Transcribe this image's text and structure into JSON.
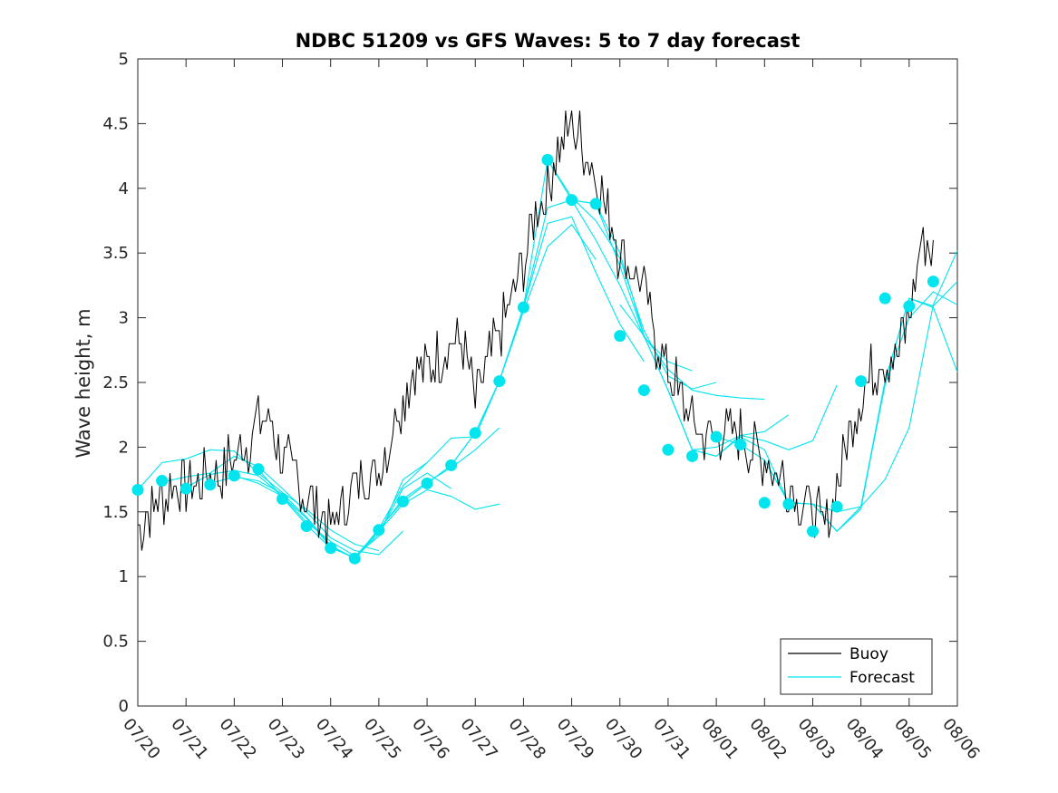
{
  "chart_data": {
    "type": "line",
    "title": "NDBC 51209 vs GFS Waves: 5 to 7 day forecast",
    "xlabel": "",
    "ylabel": "Wave height, m",
    "ylim": [
      0,
      5
    ],
    "xlim": [
      0,
      17
    ],
    "yticks": [
      "0",
      "0.5",
      "1",
      "1.5",
      "2",
      "2.5",
      "3",
      "3.5",
      "4",
      "4.5",
      "5"
    ],
    "xticks": [
      "07/20",
      "07/21",
      "07/22",
      "07/23",
      "07/24",
      "07/25",
      "07/26",
      "07/27",
      "07/28",
      "07/29",
      "07/30",
      "07/31",
      "08/01",
      "08/02",
      "08/03",
      "08/04",
      "08/05",
      "08/06"
    ],
    "grid": false,
    "legend_position": "bottom-right",
    "legend": [
      "Buoy",
      "Forecast"
    ],
    "colors": {
      "buoy": "#000000",
      "forecast": "#00e5ee"
    },
    "buoy": {
      "name": "Buoy",
      "x": [
        0.0,
        0.25,
        0.5,
        0.75,
        1.0,
        1.25,
        1.5,
        1.75,
        2.0,
        2.25,
        2.5,
        2.75,
        3.0,
        3.25,
        3.5,
        3.75,
        4.0,
        4.25,
        4.5,
        4.75,
        5.0,
        5.25,
        5.5,
        5.75,
        6.0,
        6.25,
        6.5,
        6.75,
        7.0,
        7.25,
        7.5,
        7.75,
        8.0,
        8.25,
        8.5,
        8.75,
        9.0,
        9.25,
        9.5,
        9.75,
        10.0,
        10.25,
        10.5,
        10.75,
        11.0,
        11.25,
        11.5,
        11.75,
        12.0,
        12.25,
        12.5,
        12.75,
        13.0,
        13.25,
        13.5,
        13.75,
        14.0,
        14.25,
        14.5,
        14.75,
        15.0,
        15.25,
        15.5,
        15.75,
        16.0,
        16.25,
        16.5
      ],
      "values": [
        1.4,
        1.5,
        1.6,
        1.7,
        1.7,
        1.7,
        1.8,
        1.8,
        1.9,
        2.0,
        2.2,
        2.2,
        1.9,
        1.8,
        1.6,
        1.5,
        1.4,
        1.5,
        1.7,
        1.8,
        1.8,
        2.1,
        2.4,
        2.6,
        2.6,
        2.7,
        2.8,
        2.8,
        2.3,
        2.6,
        2.9,
        3.1,
        3.4,
        3.8,
        4.0,
        4.3,
        4.5,
        4.3,
        4.1,
        3.8,
        3.5,
        3.4,
        3.2,
        2.8,
        2.6,
        2.4,
        2.2,
        2.1,
        2.1,
        2.1,
        2.1,
        2.0,
        1.9,
        1.8,
        1.7,
        1.6,
        1.5,
        1.4,
        1.7,
        2.1,
        2.4,
        2.6,
        2.7,
        2.7,
        3.0,
        3.6,
        3.5
      ]
    },
    "forecast_series": [
      {
        "name": "Forecast",
        "x": [
          0.0,
          0.5,
          1.0,
          1.5,
          2.0,
          2.5,
          3.0,
          3.5,
          4.0,
          4.5,
          5.0
        ],
        "values": [
          1.67,
          1.88,
          1.91,
          1.98,
          1.97,
          1.8,
          1.65,
          1.52,
          1.36,
          1.25,
          1.2
        ]
      },
      {
        "name": "Forecast",
        "x": [
          0.5,
          1.0,
          1.5,
          2.0,
          2.5,
          3.0,
          3.5,
          4.0,
          4.5,
          5.0,
          5.5
        ],
        "values": [
          1.73,
          1.77,
          1.8,
          1.93,
          1.85,
          1.68,
          1.5,
          1.3,
          1.2,
          1.17,
          1.35
        ]
      },
      {
        "name": "Forecast",
        "x": [
          1.0,
          1.5,
          2.0,
          2.5,
          3.0,
          3.5,
          4.0,
          4.5,
          5.0,
          5.5,
          6.0
        ],
        "values": [
          1.69,
          1.79,
          1.82,
          1.78,
          1.62,
          1.42,
          1.27,
          1.16,
          1.31,
          1.75,
          1.88
        ]
      },
      {
        "name": "Forecast",
        "x": [
          1.5,
          2.0,
          2.5,
          3.0,
          3.5,
          4.0,
          4.5,
          5.0,
          5.5,
          6.0,
          6.5
        ],
        "values": [
          1.72,
          1.77,
          1.74,
          1.64,
          1.46,
          1.24,
          1.14,
          1.33,
          1.68,
          1.8,
          1.68
        ]
      },
      {
        "name": "Forecast",
        "x": [
          2.0,
          2.5,
          3.0,
          3.5,
          4.0,
          4.5,
          5.0,
          5.5,
          6.0,
          6.5,
          7.0,
          7.5
        ],
        "values": [
          1.78,
          1.72,
          1.62,
          1.45,
          1.23,
          1.14,
          1.35,
          1.56,
          1.67,
          1.62,
          1.52,
          1.56
        ]
      },
      {
        "name": "Forecast",
        "x": [
          2.5,
          3.0,
          3.5,
          4.0,
          4.5,
          5.0,
          5.5,
          6.0,
          6.5,
          7.0,
          7.5
        ],
        "values": [
          1.83,
          1.61,
          1.4,
          1.22,
          1.15,
          1.36,
          1.6,
          1.73,
          1.84,
          1.98,
          2.15
        ]
      },
      {
        "name": "Forecast",
        "x": [
          4.5,
          5.0,
          5.5,
          6.0,
          6.5,
          7.0,
          7.5,
          8.0,
          8.5,
          9.0,
          9.5
        ],
        "values": [
          1.14,
          1.37,
          1.58,
          1.72,
          1.86,
          2.11,
          2.51,
          3.05,
          3.55,
          3.72,
          3.45
        ]
      },
      {
        "name": "Forecast",
        "x": [
          5.0,
          5.5,
          6.0,
          6.5,
          7.0,
          7.5,
          8.0,
          8.5,
          9.0,
          9.5,
          10.0,
          10.5
        ],
        "values": [
          1.37,
          1.7,
          1.88,
          2.07,
          2.08,
          2.51,
          3.08,
          3.73,
          3.78,
          3.35,
          2.95,
          2.66
        ]
      },
      {
        "name": "Forecast",
        "x": [
          6.0,
          6.5,
          7.0,
          7.5,
          8.0,
          8.5,
          9.0,
          9.5,
          10.0,
          10.5,
          11.0,
          11.5
        ],
        "values": [
          1.72,
          1.86,
          2.11,
          2.51,
          3.08,
          3.85,
          3.91,
          3.6,
          3.25,
          2.85,
          2.66,
          2.59
        ]
      },
      {
        "name": "Forecast",
        "x": [
          7.0,
          7.5,
          8.0,
          8.5,
          9.0,
          9.5,
          10.0,
          10.5,
          11.0,
          11.5,
          12.0
        ],
        "values": [
          2.11,
          2.51,
          3.08,
          4.22,
          3.93,
          3.75,
          3.46,
          2.9,
          2.55,
          2.45,
          2.5
        ]
      },
      {
        "name": "Forecast",
        "x": [
          8.5,
          9.0,
          9.5,
          10.0,
          10.5,
          11.0,
          11.5,
          12.0,
          12.5,
          13.0
        ],
        "values": [
          4.22,
          3.91,
          3.88,
          3.4,
          2.86,
          2.6,
          2.44,
          2.4,
          2.38,
          2.37
        ]
      },
      {
        "name": "Forecast",
        "x": [
          9.0,
          9.5,
          10.0,
          10.5,
          11.0,
          11.5,
          12.0,
          12.5,
          13.0,
          13.5
        ],
        "values": [
          3.91,
          3.88,
          3.5,
          2.86,
          2.44,
          1.98,
          2.0,
          2.09,
          2.12,
          2.25
        ]
      },
      {
        "name": "Forecast",
        "x": [
          10.0,
          10.5,
          11.0,
          11.5,
          12.0,
          12.5,
          13.0,
          13.5,
          14.0,
          14.5
        ],
        "values": [
          3.1,
          2.86,
          2.44,
          1.98,
          1.93,
          2.09,
          2.05,
          1.98,
          2.05,
          2.48
        ]
      },
      {
        "name": "Forecast",
        "x": [
          11.0,
          11.5,
          12.0,
          12.5,
          13.0,
          13.5,
          14.0,
          14.5,
          15.0,
          15.5,
          16.0,
          16.5,
          17.0
        ],
        "values": [
          2.44,
          1.98,
          1.93,
          2.08,
          1.98,
          1.57,
          1.56,
          1.5,
          1.54,
          2.48,
          3.0,
          3.2,
          3.1
        ]
      },
      {
        "name": "Forecast",
        "x": [
          12.0,
          12.5,
          13.0,
          13.5,
          14.0,
          14.5,
          15.0,
          15.5,
          16.0,
          16.5,
          17.0
        ],
        "values": [
          2.08,
          2.02,
          1.9,
          1.57,
          1.56,
          1.35,
          1.54,
          2.51,
          3.15,
          3.08,
          2.58
        ]
      },
      {
        "name": "Forecast",
        "x": [
          13.0,
          13.5,
          14.0,
          14.5,
          15.0,
          15.5,
          16.0,
          16.5,
          17.0
        ],
        "values": [
          1.9,
          1.57,
          1.56,
          1.35,
          1.52,
          2.51,
          3.15,
          3.09,
          3.28
        ]
      },
      {
        "name": "Forecast",
        "x": [
          14.0,
          14.5,
          15.0,
          15.5,
          16.0,
          16.5,
          17.0
        ],
        "values": [
          1.56,
          1.35,
          1.54,
          1.75,
          2.15,
          3.1,
          3.52
        ]
      }
    ],
    "forecast_markers": {
      "x": [
        0.0,
        0.5,
        1.0,
        1.5,
        2.0,
        2.5,
        3.0,
        3.5,
        4.0,
        4.5,
        5.0,
        5.5,
        6.0,
        6.5,
        7.0,
        7.5,
        8.0,
        8.5,
        9.0,
        9.5,
        10.0,
        10.5,
        11.0,
        11.5,
        12.0,
        12.5,
        13.0,
        13.5,
        14.0,
        14.5,
        15.0,
        15.5,
        16.0,
        16.5
      ],
      "values": [
        1.67,
        1.74,
        1.68,
        1.71,
        1.78,
        1.83,
        1.6,
        1.39,
        1.22,
        1.14,
        1.36,
        1.58,
        1.72,
        1.86,
        2.11,
        2.51,
        3.08,
        4.22,
        3.91,
        3.88,
        2.86,
        2.44,
        1.98,
        1.93,
        2.08,
        2.02,
        1.57,
        1.56,
        1.35,
        1.54,
        2.51,
        3.15,
        3.09,
        3.28
      ]
    }
  }
}
